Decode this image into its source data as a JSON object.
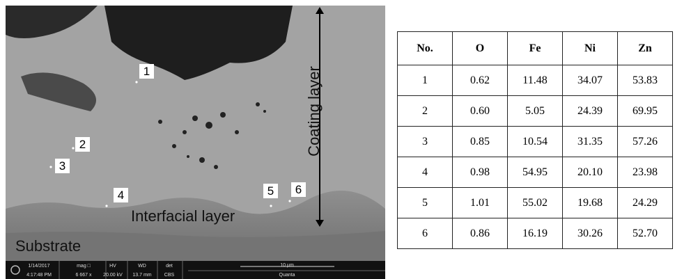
{
  "image": {
    "labels": {
      "coating": "Coating layer",
      "interfacial": "Interfacial layer",
      "substrate": "Substrate"
    },
    "points": [
      "1",
      "2",
      "3",
      "4",
      "5",
      "6"
    ],
    "info_bar": {
      "date": "1/14/2017",
      "time": "4:17:48 PM",
      "mag_label": "mag □",
      "mag": "6 667 x",
      "hv_label": "HV",
      "hv": "20.00 kV",
      "wd_label": "WD",
      "wd": "13.7 mm",
      "det_label": "det",
      "det": "CBS",
      "scale": "10 μm",
      "instrument": "Quanta"
    }
  },
  "table": {
    "header": [
      "No.",
      "O",
      "Fe",
      "Ni",
      "Zn"
    ],
    "rows": [
      [
        "1",
        "0.62",
        "11.48",
        "34.07",
        "53.83"
      ],
      [
        "2",
        "0.60",
        "5.05",
        "24.39",
        "69.95"
      ],
      [
        "3",
        "0.85",
        "10.54",
        "31.35",
        "57.26"
      ],
      [
        "4",
        "0.98",
        "54.95",
        "20.10",
        "23.98"
      ],
      [
        "5",
        "1.01",
        "55.02",
        "19.68",
        "24.29"
      ],
      [
        "6",
        "0.86",
        "16.19",
        "30.26",
        "52.70"
      ]
    ]
  }
}
